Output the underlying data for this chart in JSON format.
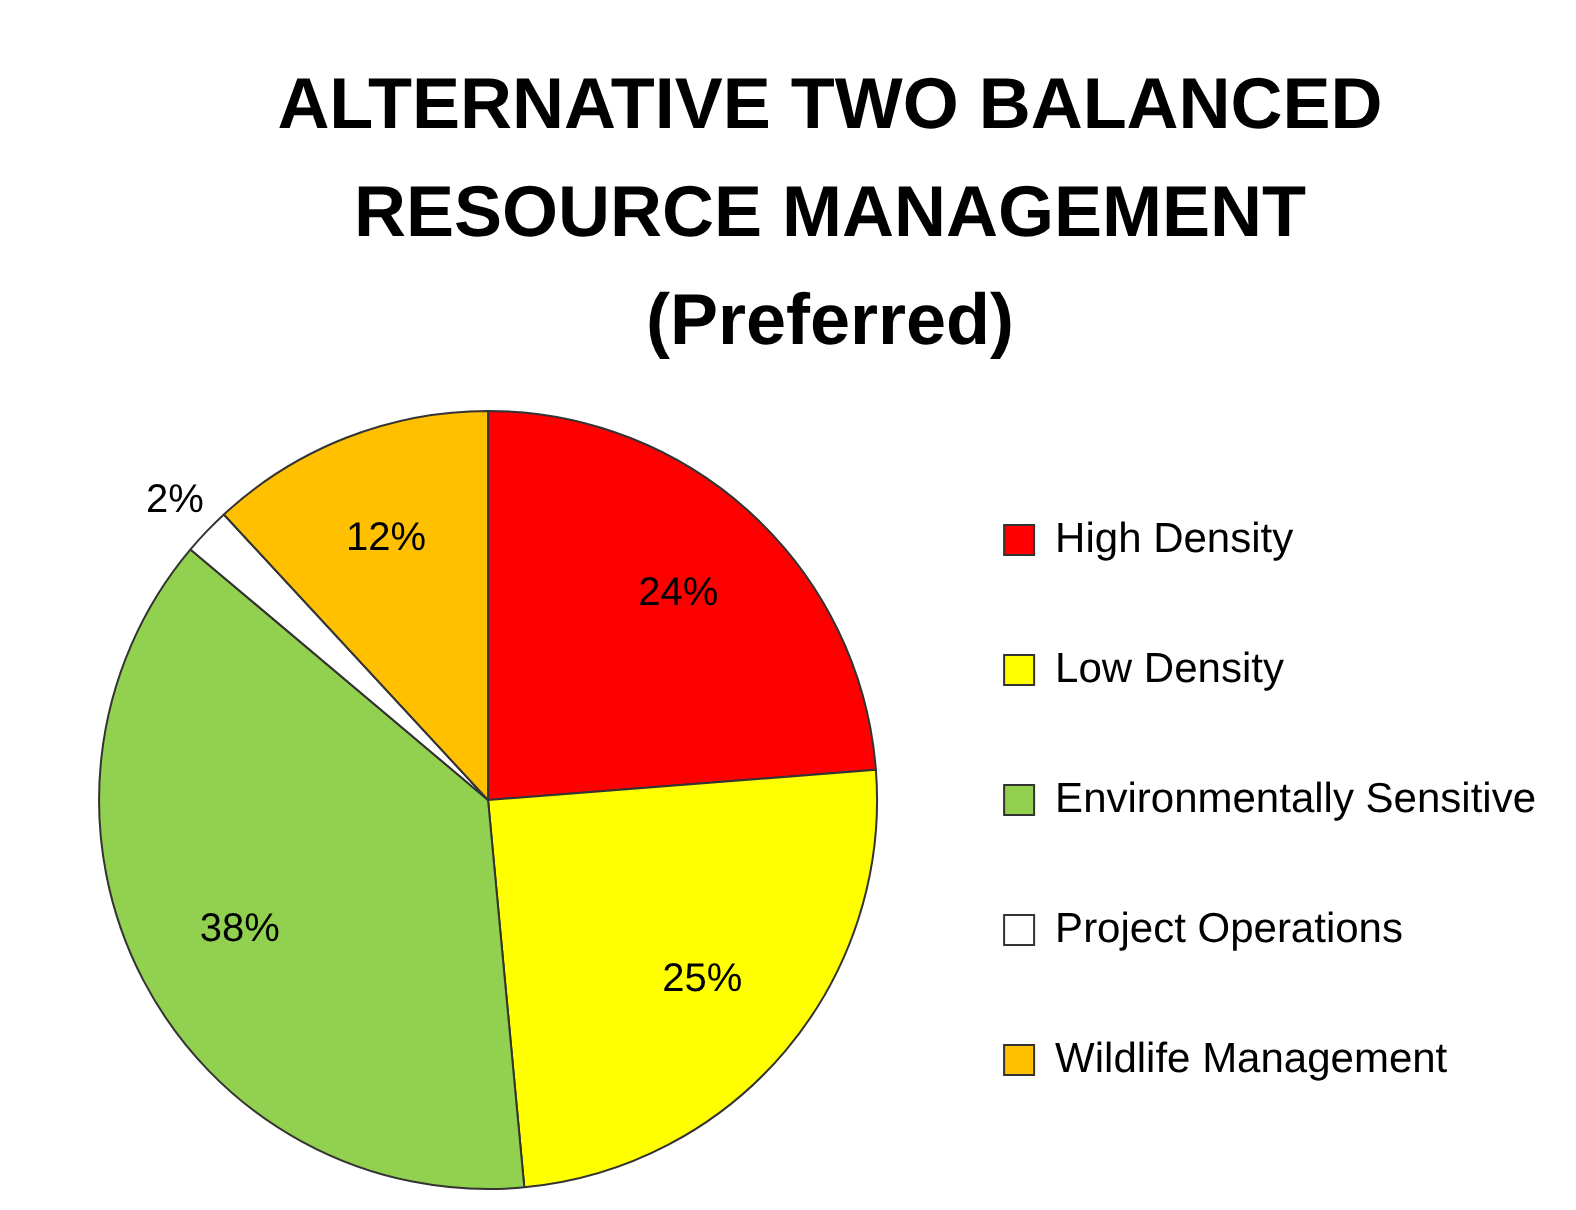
{
  "chart_data": {
    "type": "pie",
    "title": "ALTERNATIVE TWO BALANCED RESOURCE MANAGEMENT (Preferred)",
    "categories": [
      "High Density",
      "Low Density",
      "Environmentally Sensitive",
      "Project Operations",
      "Wildlife Management"
    ],
    "values": [
      24,
      25,
      38,
      2,
      12
    ],
    "colors": [
      "#ff0000",
      "#ffff00",
      "#92d050",
      "#ffffff",
      "#ffc000"
    ],
    "value_labels": [
      "24%",
      "25%",
      "38%",
      "2%",
      "12%"
    ],
    "legend": "right"
  }
}
